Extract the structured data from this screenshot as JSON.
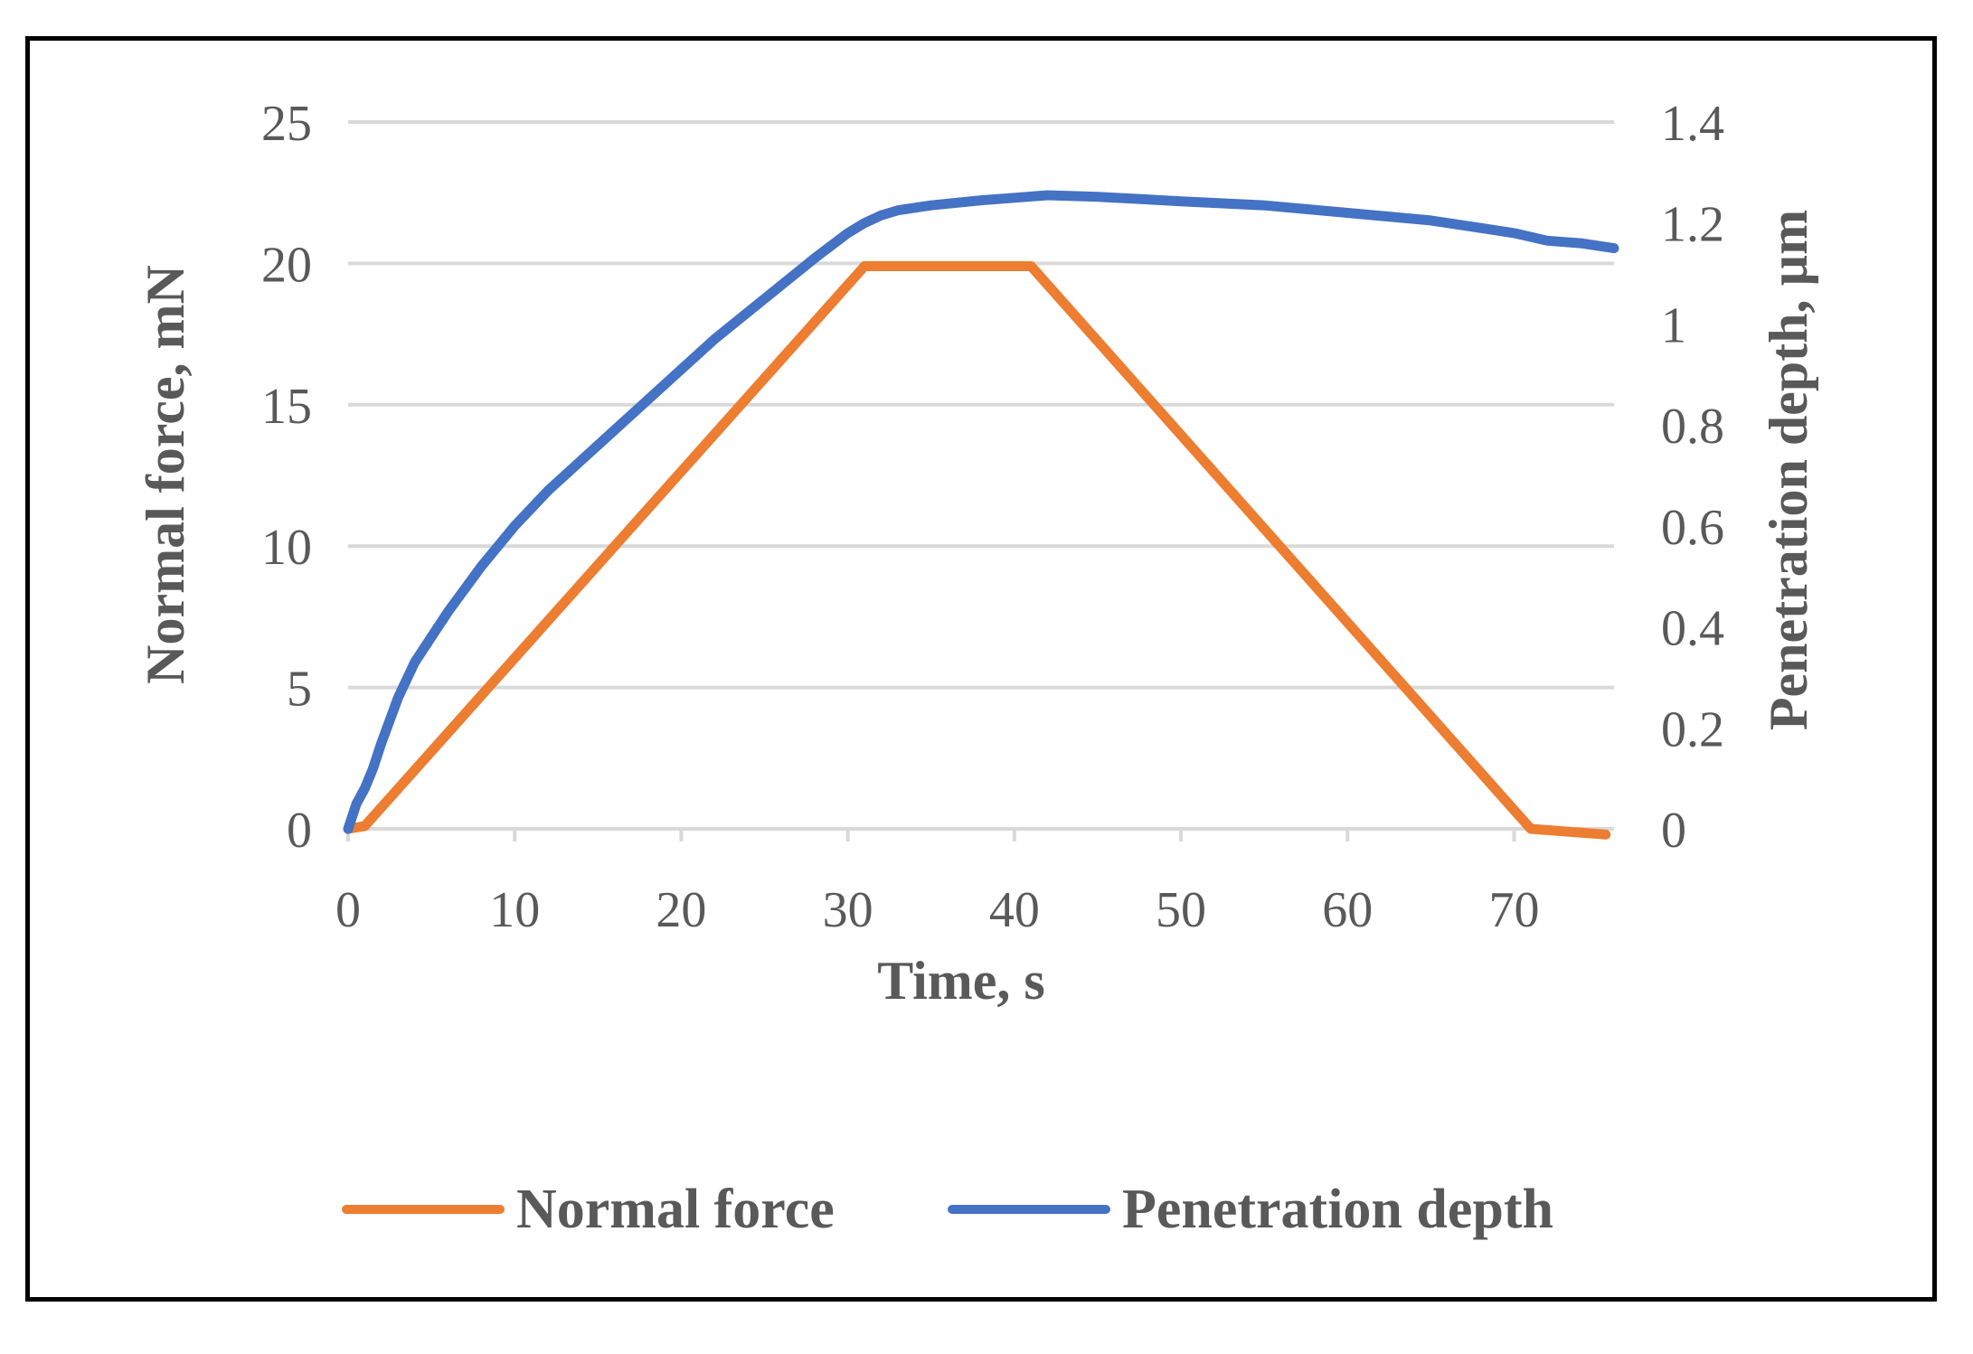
{
  "chart_data": {
    "type": "line",
    "title": "",
    "xlabel": "Time, s",
    "ylabel_left": "Normal force, mN",
    "ylabel_right": "Penetration depth, µm",
    "xlim": [
      0,
      76
    ],
    "ylim_left": [
      0,
      25
    ],
    "ylim_right": [
      0,
      1.4
    ],
    "x_ticks": [
      0,
      10,
      20,
      30,
      40,
      50,
      60,
      70
    ],
    "x_tick_labels": [
      "0",
      "10",
      "20",
      "30",
      "40",
      "50",
      "60",
      "70"
    ],
    "y_left_ticks": [
      0,
      5,
      10,
      15,
      20,
      25
    ],
    "y_left_tick_labels": [
      "0",
      "5",
      "10",
      "15",
      "20",
      "25"
    ],
    "y_right_ticks": [
      0,
      0.2,
      0.4,
      0.6,
      0.8,
      1,
      1.2,
      1.4
    ],
    "y_right_tick_labels": [
      "0",
      "0.2",
      "0.4",
      "0.6",
      "0.8",
      "1",
      "1.2",
      "1.4"
    ],
    "grid": true,
    "legend_position": "bottom",
    "series": [
      {
        "name": "Normal force",
        "axis": "left",
        "color": "#ED7D31",
        "x": [
          0,
          1,
          31,
          41,
          71,
          75.5
        ],
        "y": [
          0,
          0.1,
          19.9,
          19.9,
          0,
          -0.2
        ]
      },
      {
        "name": "Penetration depth",
        "axis": "right",
        "color": "#4472C4",
        "x": [
          0,
          0.5,
          1,
          1.5,
          2,
          3,
          4,
          5,
          6,
          8,
          10,
          12,
          15,
          18,
          20,
          22,
          25,
          28,
          30,
          31,
          32,
          33,
          35,
          38,
          40,
          42,
          45,
          50,
          55,
          60,
          65,
          70,
          72,
          74,
          76
        ],
        "y": [
          0,
          0.05,
          0.08,
          0.12,
          0.17,
          0.26,
          0.33,
          0.38,
          0.43,
          0.52,
          0.6,
          0.67,
          0.76,
          0.85,
          0.91,
          0.97,
          1.05,
          1.13,
          1.18,
          1.2,
          1.215,
          1.225,
          1.235,
          1.245,
          1.25,
          1.255,
          1.252,
          1.243,
          1.235,
          1.22,
          1.205,
          1.18,
          1.165,
          1.16,
          1.15
        ]
      }
    ]
  }
}
